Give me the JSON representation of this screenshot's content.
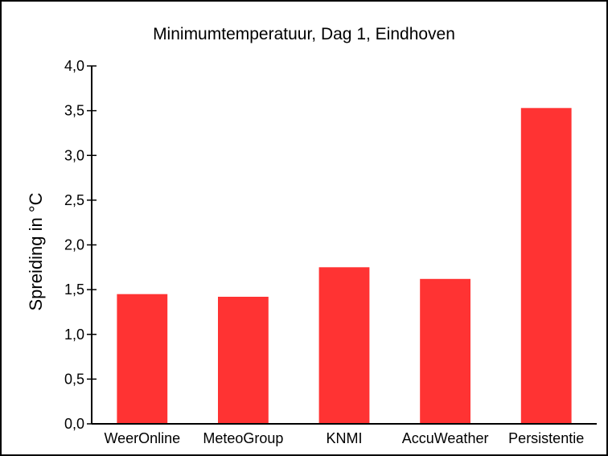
{
  "chart_data": {
    "type": "bar",
    "title": "Minimumtemperatuur, Dag 1, Eindhoven",
    "xlabel": "",
    "ylabel": "Spreiding in °C",
    "categories": [
      "WeerOnline",
      "MeteoGroup",
      "KNMI",
      "AccuWeather",
      "Persistentie"
    ],
    "values": [
      1.45,
      1.42,
      1.75,
      1.62,
      3.53
    ],
    "ylim": [
      0,
      4
    ],
    "yticks": [
      "0,0",
      "0,5",
      "1,0",
      "1,5",
      "2,0",
      "2,5",
      "3,0",
      "3,5",
      "4,0"
    ],
    "grid": false,
    "legend": "none",
    "bar_color": "#ff3333"
  }
}
